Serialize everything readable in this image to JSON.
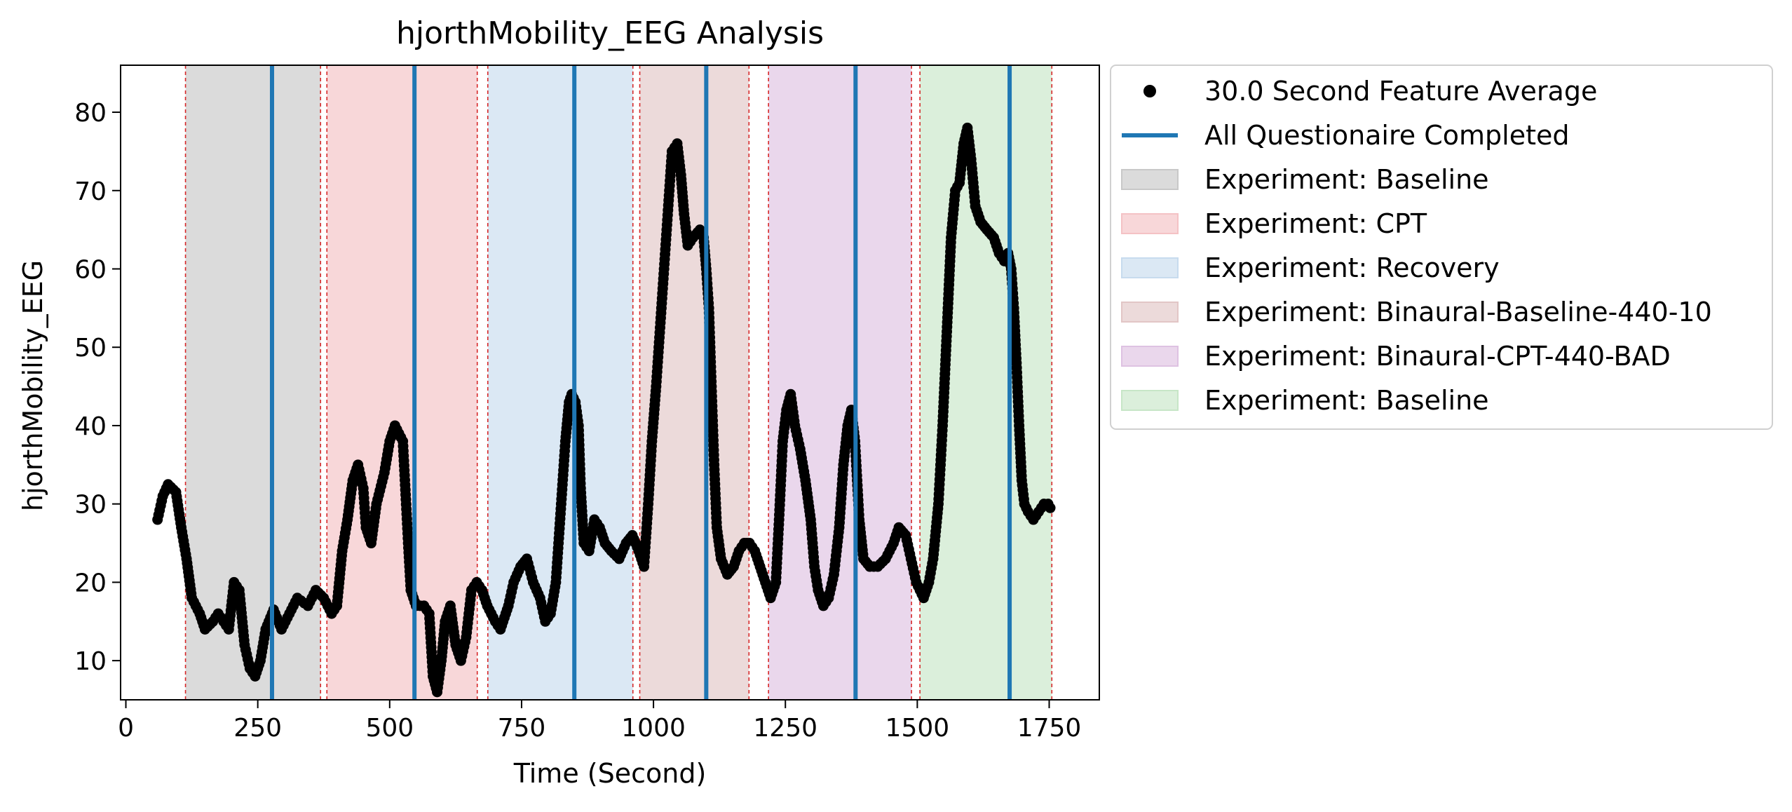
{
  "chart_data": {
    "type": "scatter",
    "title": "hjorthMobility_EEG Analysis",
    "xlabel": "Time (Second)",
    "ylabel": "hjorthMobility_EEG",
    "xlim": [
      -10,
      1845
    ],
    "ylim": [
      5,
      86
    ],
    "xticks": [
      0,
      250,
      500,
      750,
      1000,
      1250,
      1500,
      1750
    ],
    "yticks": [
      10,
      20,
      30,
      40,
      50,
      60,
      70,
      80
    ],
    "grid": false,
    "legend_position": "outside-right-top",
    "series": [
      {
        "name": "30.0 Second Feature Average",
        "kind": "scatter",
        "color": "#000000",
        "keypoints": [
          [
            60,
            28
          ],
          [
            70,
            31
          ],
          [
            80,
            32.5
          ],
          [
            95,
            31.5
          ],
          [
            105,
            27
          ],
          [
            115,
            23
          ],
          [
            125,
            18
          ],
          [
            140,
            16
          ],
          [
            150,
            14
          ],
          [
            165,
            15
          ],
          [
            175,
            16
          ],
          [
            185,
            15
          ],
          [
            195,
            14
          ],
          [
            205,
            20
          ],
          [
            215,
            19
          ],
          [
            225,
            12
          ],
          [
            235,
            9
          ],
          [
            245,
            8
          ],
          [
            255,
            10
          ],
          [
            265,
            14
          ],
          [
            280,
            16.5
          ],
          [
            295,
            14
          ],
          [
            310,
            16
          ],
          [
            325,
            18
          ],
          [
            345,
            17
          ],
          [
            360,
            19
          ],
          [
            375,
            18
          ],
          [
            390,
            16
          ],
          [
            400,
            17
          ],
          [
            410,
            24
          ],
          [
            420,
            28
          ],
          [
            430,
            33
          ],
          [
            440,
            35
          ],
          [
            450,
            32
          ],
          [
            455,
            27
          ],
          [
            465,
            25
          ],
          [
            475,
            30
          ],
          [
            490,
            34
          ],
          [
            500,
            38
          ],
          [
            510,
            40
          ],
          [
            525,
            38
          ],
          [
            535,
            25
          ],
          [
            540,
            19
          ],
          [
            550,
            17
          ],
          [
            565,
            17
          ],
          [
            575,
            16
          ],
          [
            582,
            8
          ],
          [
            590,
            6
          ],
          [
            598,
            10
          ],
          [
            605,
            15
          ],
          [
            615,
            17
          ],
          [
            625,
            12
          ],
          [
            635,
            10
          ],
          [
            645,
            13
          ],
          [
            655,
            19
          ],
          [
            665,
            20
          ],
          [
            675,
            19
          ],
          [
            685,
            17
          ],
          [
            700,
            15
          ],
          [
            710,
            14
          ],
          [
            725,
            17
          ],
          [
            735,
            20
          ],
          [
            748,
            22
          ],
          [
            760,
            23
          ],
          [
            772,
            20
          ],
          [
            785,
            18
          ],
          [
            795,
            15
          ],
          [
            805,
            16
          ],
          [
            815,
            20
          ],
          [
            825,
            30
          ],
          [
            833,
            38
          ],
          [
            840,
            43
          ],
          [
            845,
            44
          ],
          [
            852,
            43
          ],
          [
            858,
            40
          ],
          [
            862,
            32
          ],
          [
            868,
            25
          ],
          [
            878,
            24
          ],
          [
            888,
            28
          ],
          [
            898,
            27
          ],
          [
            908,
            25
          ],
          [
            920,
            24
          ],
          [
            935,
            23
          ],
          [
            948,
            25
          ],
          [
            960,
            26
          ],
          [
            972,
            24
          ],
          [
            982,
            22
          ],
          [
            990,
            30
          ],
          [
            997,
            38
          ],
          [
            1005,
            45
          ],
          [
            1015,
            55
          ],
          [
            1025,
            65
          ],
          [
            1035,
            75
          ],
          [
            1045,
            76
          ],
          [
            1052,
            72
          ],
          [
            1058,
            67
          ],
          [
            1065,
            63
          ],
          [
            1075,
            64
          ],
          [
            1088,
            65
          ],
          [
            1095,
            64
          ],
          [
            1100,
            60
          ],
          [
            1105,
            55
          ],
          [
            1110,
            45
          ],
          [
            1115,
            35
          ],
          [
            1120,
            27
          ],
          [
            1128,
            23
          ],
          [
            1140,
            21
          ],
          [
            1152,
            22
          ],
          [
            1162,
            24
          ],
          [
            1172,
            25
          ],
          [
            1182,
            25
          ],
          [
            1192,
            24
          ],
          [
            1202,
            22
          ],
          [
            1212,
            20
          ],
          [
            1222,
            18
          ],
          [
            1232,
            20
          ],
          [
            1238,
            28
          ],
          [
            1245,
            38
          ],
          [
            1252,
            42
          ],
          [
            1260,
            44
          ],
          [
            1268,
            40
          ],
          [
            1278,
            37
          ],
          [
            1288,
            33
          ],
          [
            1298,
            28
          ],
          [
            1305,
            22
          ],
          [
            1312,
            19
          ],
          [
            1322,
            17
          ],
          [
            1332,
            18
          ],
          [
            1342,
            21
          ],
          [
            1352,
            27
          ],
          [
            1360,
            35
          ],
          [
            1368,
            40
          ],
          [
            1375,
            42
          ],
          [
            1382,
            38
          ],
          [
            1390,
            28
          ],
          [
            1398,
            23
          ],
          [
            1410,
            22
          ],
          [
            1425,
            22
          ],
          [
            1440,
            23
          ],
          [
            1455,
            25
          ],
          [
            1465,
            27
          ],
          [
            1478,
            26
          ],
          [
            1488,
            23
          ],
          [
            1498,
            20
          ],
          [
            1505,
            19
          ],
          [
            1512,
            18
          ],
          [
            1522,
            20
          ],
          [
            1530,
            23
          ],
          [
            1540,
            30
          ],
          [
            1548,
            40
          ],
          [
            1556,
            52
          ],
          [
            1564,
            64
          ],
          [
            1572,
            70
          ],
          [
            1580,
            71
          ],
          [
            1588,
            76
          ],
          [
            1595,
            78
          ],
          [
            1602,
            74
          ],
          [
            1610,
            68
          ],
          [
            1620,
            66
          ],
          [
            1632,
            65
          ],
          [
            1645,
            64
          ],
          [
            1655,
            62
          ],
          [
            1665,
            61
          ],
          [
            1672,
            62
          ],
          [
            1678,
            60
          ],
          [
            1683,
            55
          ],
          [
            1688,
            48
          ],
          [
            1693,
            40
          ],
          [
            1698,
            33
          ],
          [
            1703,
            30
          ],
          [
            1710,
            29
          ],
          [
            1720,
            28
          ],
          [
            1730,
            29
          ],
          [
            1740,
            30
          ],
          [
            1748,
            30
          ],
          [
            1752,
            29.5
          ]
        ]
      }
    ],
    "vlines": {
      "name": "All Questionaire Completed",
      "color": "#1f77b4",
      "x": [
        277,
        547,
        850,
        1100,
        1383,
        1675
      ]
    },
    "spans": [
      {
        "name": "Experiment: Baseline",
        "color": "#c8c8c8",
        "x0": 113,
        "x1": 369
      },
      {
        "name": "Experiment: CPT",
        "color": "#f4c2c5",
        "x0": 381,
        "x1": 666
      },
      {
        "name": "Experiment: Recovery",
        "color": "#c7dbee",
        "x0": 686,
        "x1": 961
      },
      {
        "name": "Experiment: Binaural-Baseline-440-10",
        "color": "#e2c6c6",
        "x0": 974,
        "x1": 1181
      },
      {
        "name": "Experiment: Binaural-CPT-440-BAD",
        "color": "#dec2e2",
        "x0": 1218,
        "x1": 1489
      },
      {
        "name": "Experiment: Baseline",
        "color": "#c7e6c7",
        "x0": 1505,
        "x1": 1755
      }
    ],
    "dashed_boundaries": {
      "color": "#d62728",
      "x": [
        113,
        369,
        381,
        666,
        686,
        961,
        974,
        1181,
        1218,
        1489,
        1505,
        1755
      ]
    }
  }
}
